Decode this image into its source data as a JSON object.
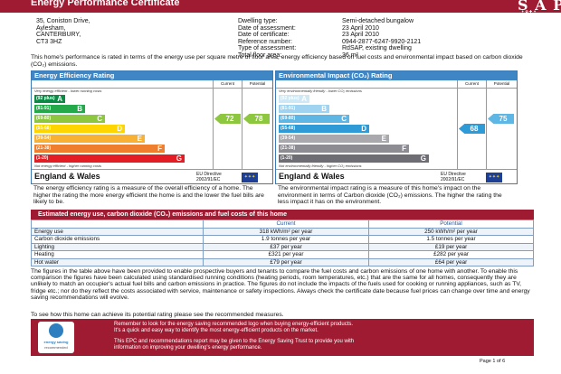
{
  "header": {
    "title": "Energy Performance Certificate",
    "brand": "S A P",
    "brand_tag": "✦ ✿ ✚ ✦"
  },
  "address": [
    "35, Coniston Drive,",
    "Aylesham,",
    "CANTERBURY,",
    "CT3 3HZ"
  ],
  "properties": [
    {
      "k": "Dwelling type:",
      "v": "Semi-detached bungalow"
    },
    {
      "k": "Date of assessment:",
      "v": "23 April 2010"
    },
    {
      "k": "Date of certificate:",
      "v": "23 April 2010"
    },
    {
      "k": "Reference number:",
      "v": "0944-2877-6247-9920-2121"
    },
    {
      "k": "Type of assessment:",
      "v": "RdSAP, existing dwelling"
    },
    {
      "k": "Total floor area:",
      "v": "36 m²"
    }
  ],
  "intro": "This home's performance is rated in terms of the energy use per square metre of floor area, energy efficiency based on fuel costs and environmental impact based on carbon dioxide (CO₂) emissions.",
  "efficiency": {
    "title": "Energy Efficiency Rating",
    "col_current": "Current",
    "col_potential": "Potential",
    "top_note": "Very energy efficient - lower running costs",
    "bottom_note": "Not energy efficient - higher running costs",
    "bands": [
      {
        "range": "(92 plus)",
        "letter": "A",
        "color": "#0c8a46"
      },
      {
        "range": "(81-91)",
        "letter": "B",
        "color": "#23a84a"
      },
      {
        "range": "(69-80)",
        "letter": "C",
        "color": "#8dc63f"
      },
      {
        "range": "(55-68)",
        "letter": "D",
        "color": "#ffd500"
      },
      {
        "range": "(39-54)",
        "letter": "E",
        "color": "#f8b133"
      },
      {
        "range": "(21-38)",
        "letter": "F",
        "color": "#f07f2d"
      },
      {
        "range": "(1-20)",
        "letter": "G",
        "color": "#e31d23"
      }
    ],
    "current": 72,
    "current_label": "72",
    "current_color": "#8dc63f",
    "potential": 78,
    "potential_label": "78",
    "potential_color": "#8dc63f",
    "footer": "England & Wales",
    "eu1": "EU Directive",
    "eu2": "2002/91/EC",
    "flag": "✦✦✦"
  },
  "environment": {
    "title": "Environmental Impact (CO₂) Rating",
    "col_current": "Current",
    "col_potential": "Potential",
    "top_note": "Very environmentally friendly - lower CO₂ emissions",
    "bottom_note": "Not environmentally friendly - higher CO₂ emissions",
    "bands": [
      {
        "range": "(92 plus)",
        "letter": "A",
        "color": "#cfe8f6"
      },
      {
        "range": "(81-91)",
        "letter": "B",
        "color": "#9fd3ef"
      },
      {
        "range": "(69-80)",
        "letter": "C",
        "color": "#5eb6e4"
      },
      {
        "range": "(55-68)",
        "letter": "D",
        "color": "#2e9bd6"
      },
      {
        "range": "(39-54)",
        "letter": "E",
        "color": "#a8a8ad"
      },
      {
        "range": "(21-38)",
        "letter": "F",
        "color": "#8c8c92"
      },
      {
        "range": "(1-20)",
        "letter": "G",
        "color": "#6d6d73"
      }
    ],
    "current": 68,
    "current_label": "68",
    "current_color": "#2e9bd6",
    "potential": 75,
    "potential_label": "75",
    "potential_color": "#5eb6e4",
    "footer": "England & Wales",
    "eu1": "EU Directive",
    "eu2": "2002/91/EC",
    "flag": "✦✦✦"
  },
  "efficiency_desc": "The energy efficiency rating is a measure of the overall efficiency of a home. The higher the rating the more energy efficient the home is and the lower the fuel bills are likely to be.",
  "environment_desc": "The environmental impact rating is a measure of this home's impact on the environment in terms of Carbon dioxide (CO₂) emissions. The higher the rating the less impact it has on the environment.",
  "estimates": {
    "title": "Estimated energy use, carbon dioxide (CO₂) emissions and fuel costs of this home",
    "col_current": "Current",
    "col_potential": "Potential",
    "rows": [
      {
        "label": "Energy use",
        "current": "318 kWh/m² per year",
        "potential": "250 kWh/m² per year"
      },
      {
        "label": "Carbon dioxide emissions",
        "current": "1.9 tonnes per year",
        "potential": "1.5 tonnes per year"
      },
      {
        "label": "Lighting",
        "current": "£37 per year",
        "potential": "£19 per year"
      },
      {
        "label": "Heating",
        "current": "£321 per year",
        "potential": "£282 per year"
      },
      {
        "label": "Hot water",
        "current": "£79 per year",
        "potential": "£64 per year"
      }
    ]
  },
  "figures_text": "The figures in the table above have been provided to enable prospective buyers and tenants to compare the fuel costs and carbon emissions of one home with another. To enable this comparison the figures have been calculated using standardised running conditions (heating periods, room temperatures, etc.) that are the same for all homes, consequently they are unlikely to match an occupier's actual fuel bills and carbon emissions in practice. The figures do not include the impacts of the fuels used for cooking or running appliances, such as TV, fridge etc.; nor do they reflect the costs associated with service, maintenance or safety inspections. Always check the certificate date because fuel prices can change over time and energy saving recommendations will evolve.",
  "improve_text": "To see how this home can achieve its potential rating please see the recommended measures.",
  "advert": {
    "logo_line1": "energy saving",
    "logo_line2": "recommended",
    "line1": "Remember to look for the energy saving recommended logo when buying energy-efficient products.",
    "line2": "It's a quick and easy way to identify the most energy-efficient products on the market.",
    "line3": "This EPC and recommendations report may be given to the Energy Saving Trust to provide you with",
    "line4": "information on improving your dwelling's energy performance."
  },
  "page_number": "Page 1 of 6"
}
